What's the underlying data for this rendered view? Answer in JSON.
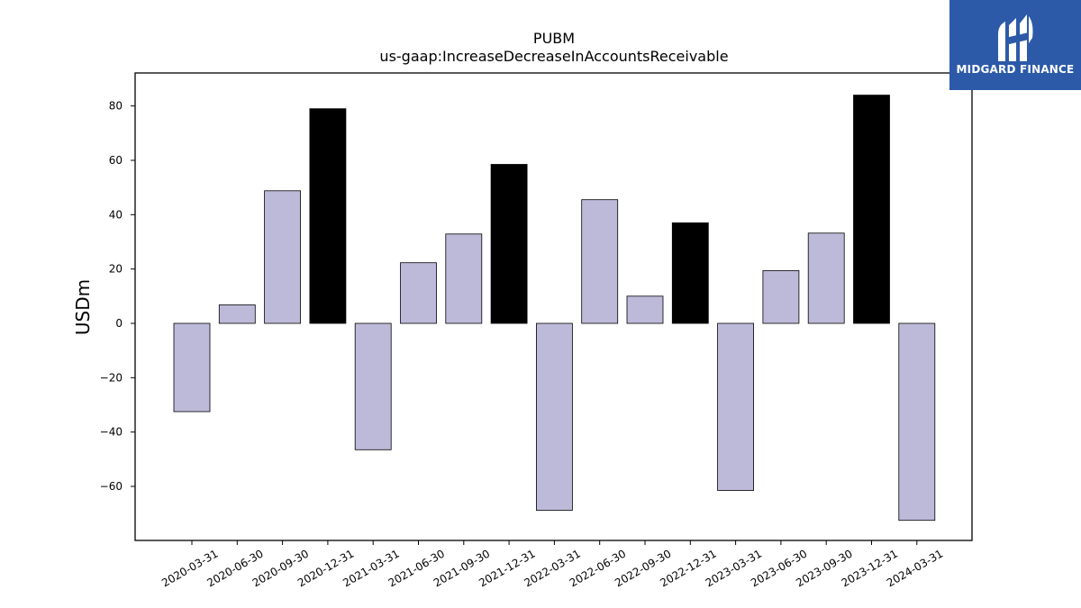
{
  "chart_data": {
    "type": "bar",
    "title": "PUBM",
    "subtitle": "us-gaap:IncreaseDecreaseInAccountsReceivable",
    "xlabel": "",
    "ylabel": "USDm",
    "ylim": [
      -80,
      92
    ],
    "yticks": [
      -60,
      -40,
      -20,
      0,
      20,
      40,
      60,
      80
    ],
    "ytick_labels": [
      "−60",
      "−40",
      "−20",
      "0",
      "20",
      "40",
      "60",
      "80"
    ],
    "grid": false,
    "categories": [
      "2020-03-31",
      "2020-06-30",
      "2020-09-30",
      "2020-12-31",
      "2021-03-31",
      "2021-06-30",
      "2021-09-30",
      "2021-12-31",
      "2022-03-31",
      "2022-06-30",
      "2022-09-30",
      "2022-12-31",
      "2023-03-31",
      "2023-06-30",
      "2023-09-30",
      "2023-12-31",
      "2024-03-31"
    ],
    "values": [
      -32.5,
      6.8,
      48.8,
      79,
      -46.5,
      22.3,
      32.9,
      58.5,
      -68.8,
      45.5,
      10,
      37,
      -61.5,
      19.4,
      33.2,
      84,
      -72.5
    ],
    "bar_colors": [
      "#bdbad9",
      "#bdbad9",
      "#bdbad9",
      "#000000",
      "#bdbad9",
      "#bdbad9",
      "#bdbad9",
      "#000000",
      "#bdbad9",
      "#bdbad9",
      "#bdbad9",
      "#000000",
      "#bdbad9",
      "#bdbad9",
      "#bdbad9",
      "#000000",
      "#bdbad9"
    ]
  },
  "logo": {
    "text": "MIDGARD FINANCE",
    "background": "#2c5aa9"
  }
}
